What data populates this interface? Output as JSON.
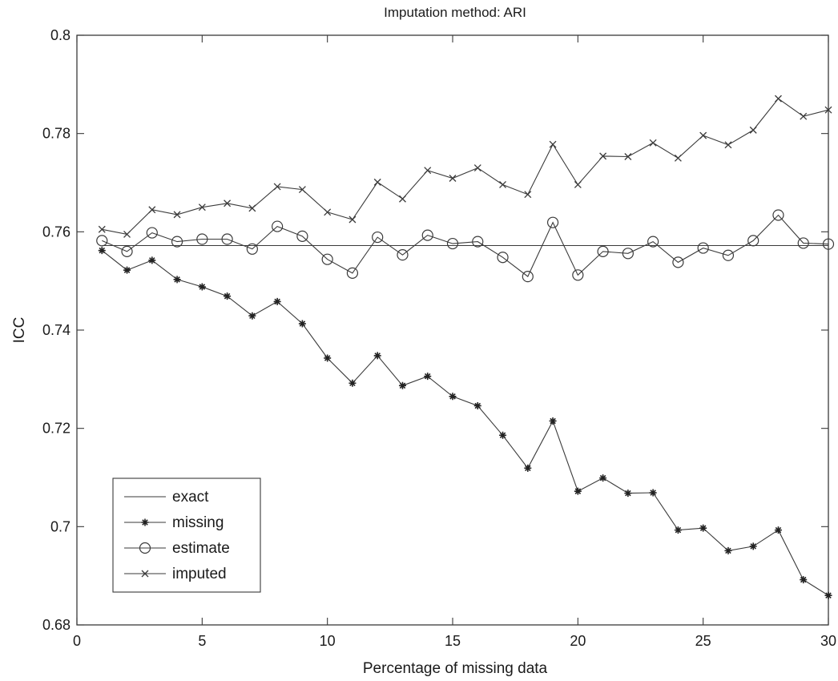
{
  "chart_data": {
    "type": "line",
    "title": "Imputation method: ARI",
    "xlabel": "Percentage of missing data",
    "ylabel": "ICC",
    "xlim": [
      0,
      30
    ],
    "ylim": [
      0.68,
      0.8
    ],
    "xticks": [
      0,
      5,
      10,
      15,
      20,
      25,
      30
    ],
    "xtick_labels": [
      "0",
      "5",
      "10",
      "15",
      "20",
      "25",
      "30"
    ],
    "yticks": [
      0.68,
      0.7,
      0.72,
      0.74,
      0.76,
      0.78,
      0.8
    ],
    "ytick_labels": [
      "0.68",
      "0.7",
      "0.72",
      "0.74",
      "0.76",
      "0.78",
      "0.8"
    ],
    "grid": false,
    "legend_position": "bottom-left",
    "x": [
      1,
      2,
      3,
      4,
      5,
      6,
      7,
      8,
      9,
      10,
      11,
      12,
      13,
      14,
      15,
      16,
      17,
      18,
      19,
      20,
      21,
      22,
      23,
      24,
      25,
      26,
      27,
      28,
      29,
      30
    ],
    "series": [
      {
        "name": "exact",
        "marker": "none",
        "values": [
          0.7572,
          0.7572,
          0.7572,
          0.7572,
          0.7572,
          0.7572,
          0.7572,
          0.7572,
          0.7572,
          0.7572,
          0.7572,
          0.7572,
          0.7572,
          0.7572,
          0.7572,
          0.7572,
          0.7572,
          0.7572,
          0.7572,
          0.7572,
          0.7572,
          0.7572,
          0.7572,
          0.7572,
          0.7572,
          0.7572,
          0.7572,
          0.7572,
          0.7572,
          0.7572
        ]
      },
      {
        "name": "missing",
        "marker": "star",
        "values": [
          0.7562,
          0.7522,
          0.7542,
          0.7503,
          0.7488,
          0.7469,
          0.7429,
          0.7458,
          0.7413,
          0.7343,
          0.7292,
          0.7348,
          0.7287,
          0.7306,
          0.7265,
          0.7246,
          0.7186,
          0.7119,
          0.7215,
          0.7072,
          0.7099,
          0.7068,
          0.7069,
          0.6993,
          0.6997,
          0.6951,
          0.696,
          0.6993,
          0.6892,
          0.686
        ]
      },
      {
        "name": "estimate",
        "marker": "circle",
        "values": [
          0.7582,
          0.756,
          0.7598,
          0.758,
          0.7585,
          0.7585,
          0.7565,
          0.7611,
          0.7591,
          0.7544,
          0.7516,
          0.7589,
          0.7553,
          0.7593,
          0.7576,
          0.758,
          0.7548,
          0.7509,
          0.7619,
          0.7512,
          0.756,
          0.7556,
          0.758,
          0.7538,
          0.7567,
          0.7552,
          0.7582,
          0.7634,
          0.7577,
          0.7575
        ]
      },
      {
        "name": "imputed",
        "marker": "x",
        "values": [
          0.7605,
          0.7595,
          0.7645,
          0.7635,
          0.765,
          0.7658,
          0.7648,
          0.7692,
          0.7686,
          0.764,
          0.7625,
          0.7701,
          0.7667,
          0.7725,
          0.7709,
          0.773,
          0.7696,
          0.7676,
          0.7778,
          0.7696,
          0.7754,
          0.7753,
          0.7781,
          0.775,
          0.7796,
          0.7777,
          0.7807,
          0.7871,
          0.7835,
          0.7848
        ]
      }
    ]
  }
}
